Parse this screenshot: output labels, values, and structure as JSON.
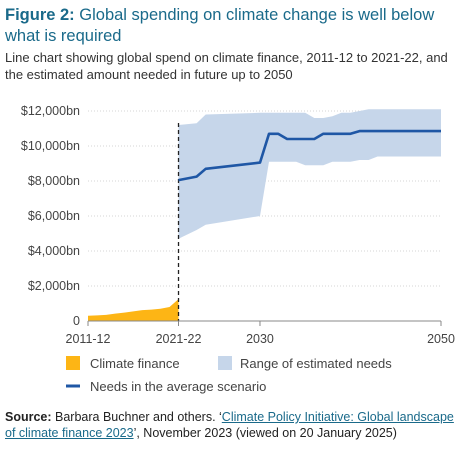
{
  "figure": {
    "label": "Figure 2:",
    "title": "Global spending on climate change is well below what is required",
    "subtitle": "Line chart showing global spend on climate finance, 2011-12 to 2021-22, and the estimated amount needed in future up to 2050"
  },
  "colors": {
    "title": "#1a6a8a",
    "climate_finance": "#fdb515",
    "range_fill": "#c6d6ea",
    "average_line": "#1f57a5",
    "axis": "#888888"
  },
  "chart_data": {
    "type": "area",
    "title": "",
    "xlabel": "",
    "ylabel": "",
    "x_ticks": [
      "2011-12",
      "2021-22",
      "2030",
      "2050"
    ],
    "y_ticks": [
      "0",
      "$2,000bn",
      "$4,000bn",
      "$6,000bn",
      "$8,000bn",
      "$10,000bn",
      "$12,000bn"
    ],
    "ylim": [
      0,
      12000
    ],
    "xlim": [
      2011,
      2050
    ],
    "grid": "horizontal",
    "divider_x": 2021,
    "series": [
      {
        "name": "Climate finance",
        "kind": "area",
        "x": [
          2011,
          2012,
          2013,
          2014,
          2015,
          2016,
          2017,
          2018,
          2019,
          2020,
          2021
        ],
        "y": [
          300,
          320,
          350,
          420,
          480,
          550,
          620,
          650,
          700,
          800,
          1250
        ]
      },
      {
        "name": "Range of estimated needs",
        "kind": "band",
        "x": [
          2021,
          2023,
          2024,
          2030,
          2031,
          2032,
          2033,
          2034,
          2035,
          2036,
          2037,
          2038,
          2039,
          2040,
          2041,
          2042,
          2043,
          2044,
          2045,
          2050
        ],
        "low": [
          4700,
          5200,
          5500,
          6000,
          9100,
          9100,
          9100,
          9100,
          8900,
          8900,
          8900,
          9100,
          9100,
          9100,
          9200,
          9200,
          9400,
          9400,
          9400,
          9400
        ],
        "high": [
          11200,
          11300,
          11800,
          11900,
          11900,
          11900,
          11900,
          11900,
          11900,
          11600,
          11600,
          11700,
          11900,
          11900,
          12000,
          12100,
          12100,
          12100,
          12100,
          12100
        ]
      },
      {
        "name": "Needs in the average scenario",
        "kind": "line",
        "x": [
          2021,
          2023,
          2024,
          2030,
          2031,
          2032,
          2033,
          2034,
          2035,
          2036,
          2037,
          2038,
          2039,
          2040,
          2041,
          2042,
          2043,
          2044,
          2045,
          2050
        ],
        "y": [
          8050,
          8250,
          8700,
          9050,
          10700,
          10700,
          10400,
          10400,
          10400,
          10400,
          10700,
          10700,
          10700,
          10700,
          10850,
          10850,
          10850,
          10850,
          10850,
          10850
        ]
      }
    ],
    "legend": [
      "Climate finance",
      "Range of estimated needs",
      "Needs in the average scenario"
    ],
    "legend_placement": "bottom"
  },
  "source": {
    "label": "Source:",
    "text_before": " Barbara Buchner and others. ‘",
    "link_text": "Climate Policy Initiative: Global landscape of climate finance 2023",
    "text_after": "’, November 2023 (viewed on 20 January 2025)"
  }
}
